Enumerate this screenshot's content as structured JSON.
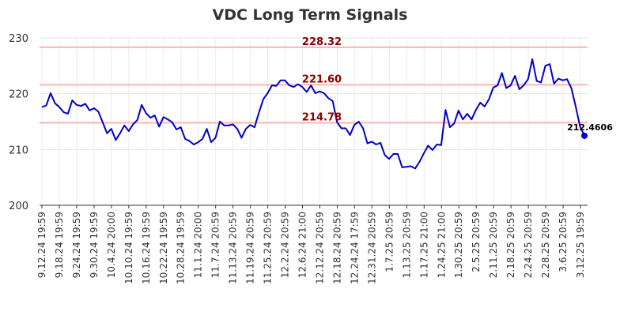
{
  "chart_data": {
    "type": "line",
    "title": "VDC Long Term Signals",
    "xlabel": "",
    "ylabel": "",
    "ylim": [
      200,
      230
    ],
    "yticks": [
      200,
      210,
      220,
      230
    ],
    "grid": true,
    "x_tick_labels": [
      "9.12.24 19:59",
      "9.18.24 19:59",
      "9.24.24 19:59",
      "9.30.24 19:59",
      "10.4.24 20:00",
      "10.10.24 19:59",
      "10.16.24 19:59",
      "10.22.24 19:59",
      "10.28.24 19:59",
      "11.1.24 20:00",
      "11.7.24 20:59",
      "11.13.24 20:59",
      "11.19.24 20:59",
      "11.25.24 20:59",
      "12.2.24 20:59",
      "12.6.24 21:00",
      "12.12.24 20:59",
      "12.18.24 20:59",
      "12.24.24 17:59",
      "12.31.24 20:59",
      "1.7.25 20:59",
      "1.13.25 20:59",
      "1.17.25 21:00",
      "1.24.25 21:00",
      "1.30.25 20:59",
      "2.5.25 20:59",
      "2.11.25 20:59",
      "2.18.25 20:59",
      "2.24.25 20:59",
      "2.28.25 20:59",
      "3.6.25 20:59",
      "3.12.25 19:59"
    ],
    "reference_lines": [
      {
        "value": 228.32,
        "label": "228.32",
        "color": "#ffb3b3"
      },
      {
        "value": 221.6,
        "label": "221.60",
        "color": "#ffb3b3"
      },
      {
        "value": 214.78,
        "label": "214.78",
        "color": "#ffb3b3"
      }
    ],
    "series": [
      {
        "color": "#0000cc",
        "values": [
          217.6,
          217.9,
          220.1,
          218.3,
          217.6,
          216.7,
          216.4,
          218.8,
          218.0,
          217.8,
          218.2,
          217.0,
          217.4,
          216.8,
          214.9,
          212.9,
          213.7,
          211.7,
          212.9,
          214.3,
          213.3,
          214.5,
          215.3,
          218.0,
          216.5,
          215.7,
          216.1,
          214.1,
          215.8,
          215.4,
          214.9,
          213.6,
          214.0,
          211.9,
          211.5,
          210.9,
          211.3,
          211.9,
          213.7,
          211.3,
          212.1,
          215.0,
          214.3,
          214.3,
          214.5,
          213.7,
          212.1,
          213.7,
          214.4,
          214.0,
          216.6,
          219.0,
          220.1,
          221.5,
          221.4,
          222.4,
          222.4,
          221.5,
          221.2,
          221.7,
          221.2,
          220.3,
          221.5,
          220.1,
          220.4,
          220.1,
          219.2,
          218.7,
          214.9,
          213.8,
          213.8,
          212.6,
          214.4,
          215.0,
          213.8,
          211.1,
          211.4,
          210.9,
          211.2,
          209.0,
          208.3,
          209.2,
          209.2,
          206.8,
          206.9,
          207.0,
          206.6,
          207.8,
          209.3,
          210.7,
          209.9,
          210.9,
          210.8,
          217.1,
          214.0,
          214.7,
          217.0,
          215.4,
          216.4,
          215.4,
          217.1,
          218.4,
          217.7,
          219.0,
          221.1,
          221.5,
          223.7,
          221.0,
          221.5,
          223.2,
          220.8,
          221.5,
          222.6,
          226.2,
          222.3,
          222.0,
          225.0,
          225.3,
          221.8,
          222.7,
          222.4,
          222.6,
          221.0,
          217.7,
          214.1,
          212.46
        ]
      }
    ],
    "last_value_label": "212.4606"
  }
}
